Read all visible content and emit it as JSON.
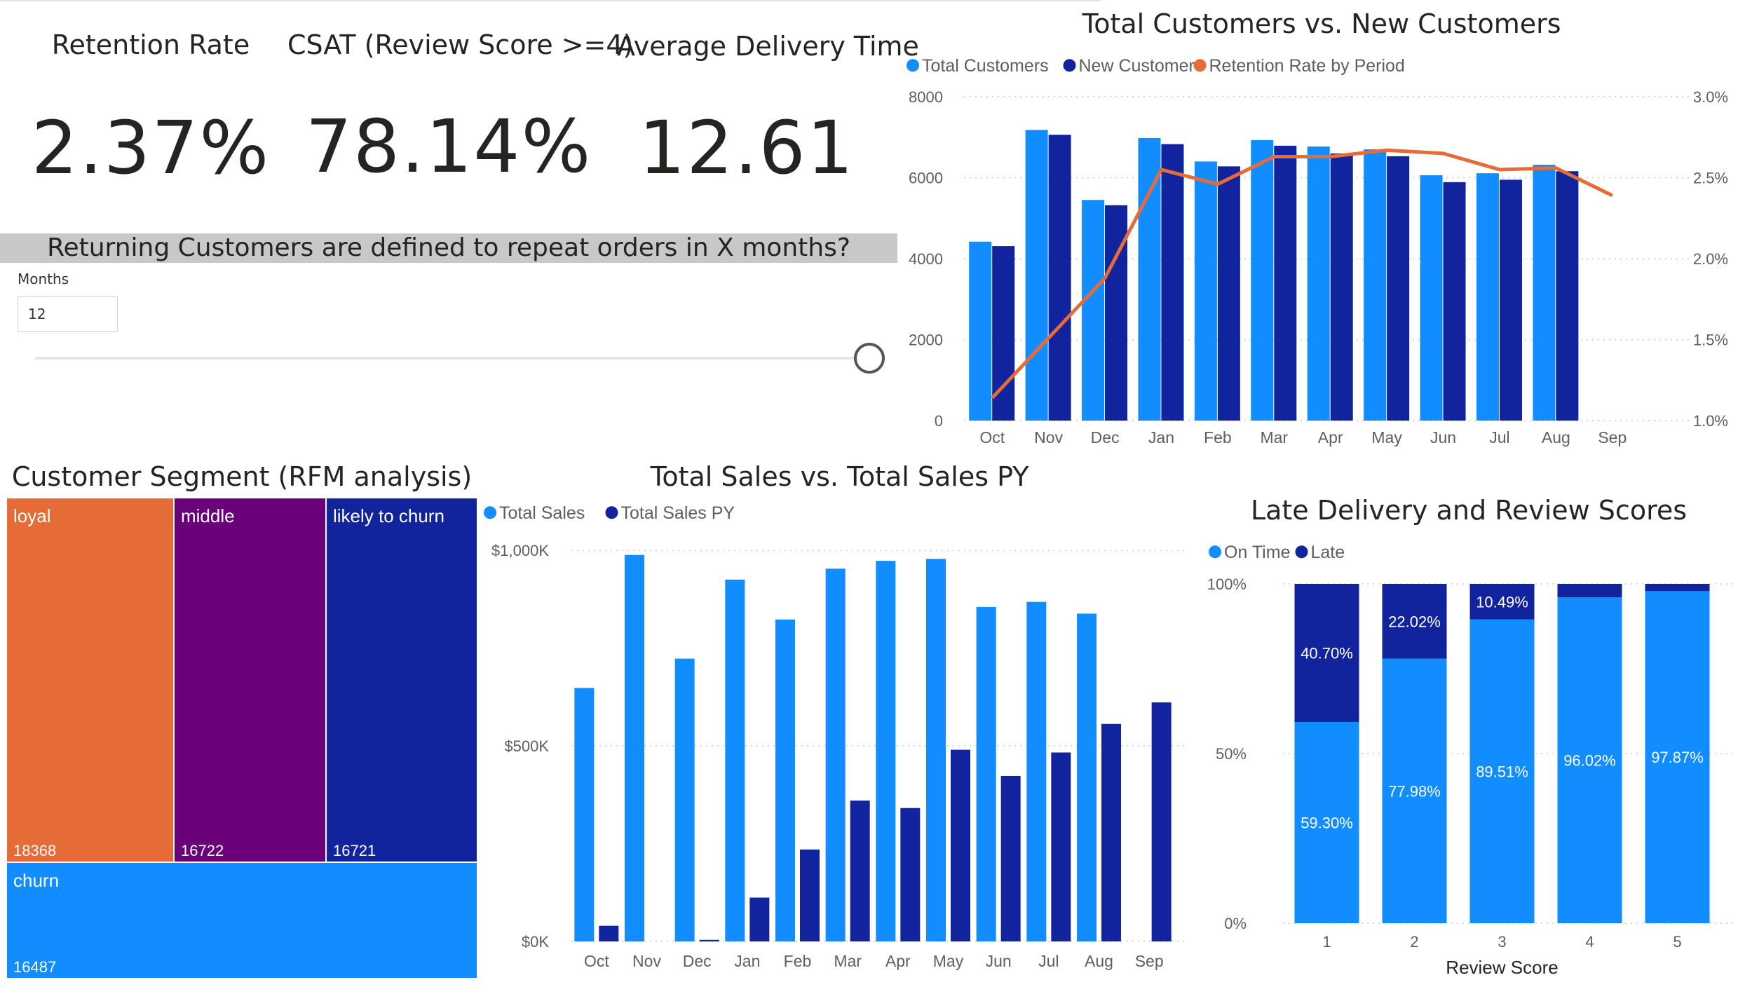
{
  "kpis": [
    {
      "title": "Retention Rate",
      "value": "2.37%"
    },
    {
      "title": "CSAT (Review Score >=4)",
      "value": "78.14%"
    },
    {
      "title": "Average Delivery Time",
      "value": "12.61"
    }
  ],
  "filter": {
    "banner": "Returning Customers are defined to repeat orders in X months?",
    "label": "Months",
    "value": "12",
    "slider_fraction": 1.0
  },
  "colors": {
    "light_blue": "#118DFF",
    "dark_blue": "#12239E",
    "orange": "#E66C37",
    "purple": "#6B007B"
  },
  "rfm": {
    "title": "Customer Segment (RFM analysis)",
    "segments": [
      {
        "label": "loyal",
        "value": "18368",
        "color": "#E66C37"
      },
      {
        "label": "middle",
        "value": "16722",
        "color": "#6B007B"
      },
      {
        "label": "likely to churn",
        "value": "16721",
        "color": "#12239E"
      },
      {
        "label": "churn",
        "value": "16487",
        "color": "#118DFF"
      }
    ]
  },
  "chart_data": [
    {
      "id": "customers",
      "type": "bar",
      "title": "Total Customers vs. New Customers",
      "categories": [
        "Oct",
        "Nov",
        "Dec",
        "Jan",
        "Feb",
        "Mar",
        "Apr",
        "May",
        "Jun",
        "Jul",
        "Aug",
        "Sep"
      ],
      "series": [
        {
          "name": "Total Customers",
          "kind": "bar",
          "color": "#118DFF",
          "values": [
            4420,
            7180,
            5450,
            6980,
            6400,
            6930,
            6770,
            6700,
            6060,
            6110,
            6320,
            null
          ]
        },
        {
          "name": "New Customer",
          "kind": "bar",
          "color": "#12239E",
          "values": [
            4310,
            7060,
            5320,
            6830,
            6280,
            6790,
            6600,
            6530,
            5890,
            5950,
            6160,
            null
          ]
        },
        {
          "name": "Retention Rate by Period",
          "kind": "line",
          "axis": "right",
          "color": "#E66C37",
          "values": [
            1.14,
            1.51,
            1.88,
            2.55,
            2.46,
            2.63,
            2.63,
            2.67,
            2.65,
            2.55,
            2.56,
            2.39
          ]
        }
      ],
      "yticks": [
        "0",
        "2000",
        "4000",
        "6000",
        "8000"
      ],
      "ylim": [
        0,
        8000
      ],
      "y2ticks": [
        "1.0%",
        "1.5%",
        "2.0%",
        "2.5%",
        "3.0%"
      ],
      "y2lim": [
        1.0,
        3.0
      ],
      "grid": true,
      "legend": "top-left"
    },
    {
      "id": "sales",
      "type": "bar",
      "title": "Total Sales vs. Total Sales PY",
      "categories": [
        "Oct",
        "Nov",
        "Dec",
        "Jan",
        "Feb",
        "Mar",
        "Apr",
        "May",
        "Jun",
        "Jul",
        "Aug",
        "Sep"
      ],
      "series": [
        {
          "name": "Total Sales",
          "color": "#118DFF",
          "values": [
            648,
            988,
            723,
            925,
            823,
            953,
            973,
            978,
            855,
            868,
            838,
            null
          ]
        },
        {
          "name": "Total Sales PY",
          "color": "#12239E",
          "values": [
            40,
            null,
            4,
            112,
            235,
            360,
            341,
            490,
            423,
            483,
            556,
            611
          ]
        }
      ],
      "yticks": [
        "$0K",
        "$500K",
        "$1,000K"
      ],
      "ylim": [
        0,
        1000
      ],
      "unit": "thousands USD",
      "grid": true,
      "legend": "top-left"
    },
    {
      "id": "late",
      "type": "bar",
      "stacked": "100%",
      "title": "Late Delivery and Review Scores",
      "categories": [
        "1",
        "2",
        "3",
        "4",
        "5"
      ],
      "xlabel": "Review Score",
      "series": [
        {
          "name": "On Time",
          "color": "#118DFF",
          "values": [
            59.3,
            77.98,
            89.51,
            96.02,
            97.87
          ],
          "labels": [
            "59.30%",
            "77.98%",
            "89.51%",
            "96.02%",
            "97.87%"
          ]
        },
        {
          "name": "Late",
          "color": "#12239E",
          "values": [
            40.7,
            22.02,
            10.49,
            3.98,
            2.13
          ],
          "labels": [
            "40.70%",
            "22.02%",
            "10.49%",
            "",
            ""
          ]
        }
      ],
      "yticks": [
        "0%",
        "50%",
        "100%"
      ],
      "ylim": [
        0,
        100
      ],
      "grid": true,
      "legend": "top-left"
    }
  ]
}
